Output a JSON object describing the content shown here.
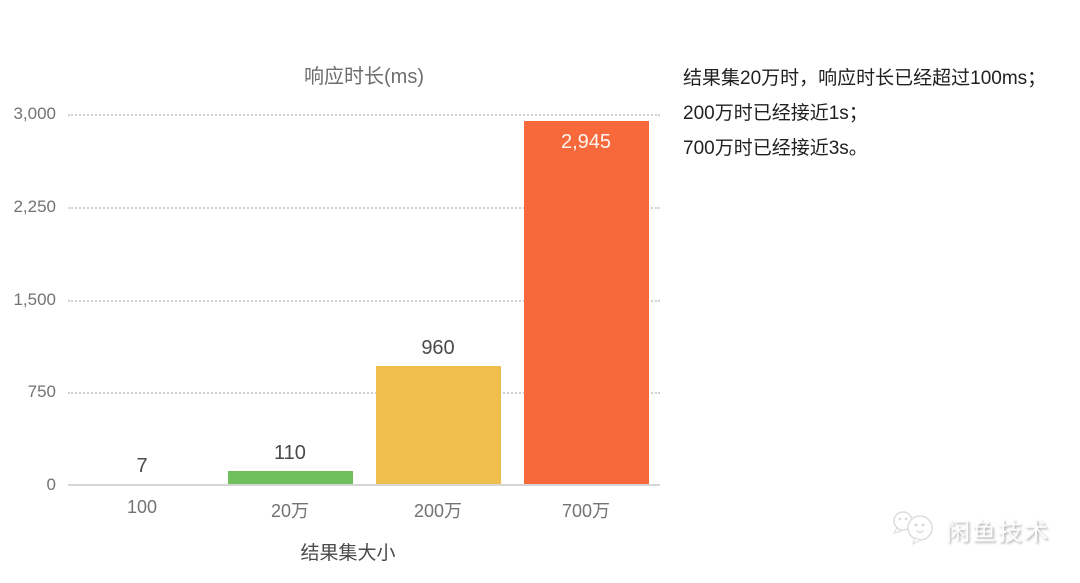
{
  "chart_data": {
    "type": "bar",
    "title": "响应时长(ms)",
    "categories": [
      "100",
      "20万",
      "200万",
      "700万"
    ],
    "values": [
      7,
      110,
      960,
      2945
    ],
    "value_labels": [
      "7",
      "110",
      "960",
      "2,945"
    ],
    "xlabel": "结果集大小",
    "ylabel": "",
    "ylim": [
      0,
      3000
    ],
    "yticks": [
      0,
      750,
      1500,
      2250,
      3000
    ],
    "ytick_labels": [
      "0",
      "750",
      "1,500",
      "2,250",
      "3,000"
    ],
    "grid": "horizontal dotted",
    "legend": "none",
    "bar_colors": [
      "#cfcfcf",
      "#6fbf5c",
      "#f0be4c",
      "#f7693b"
    ],
    "label_positions": [
      "above",
      "above",
      "above",
      "inside-top"
    ],
    "outside_label_color": "#4a4a4a",
    "inside_label_color": "#fdf6f1"
  },
  "annotation": {
    "lines": [
      "结果集20万时，响应时长已经超过100ms；",
      "200万时已经接近1s；",
      "700万时已经接近3s。"
    ]
  },
  "watermark": {
    "text": "闲鱼技术"
  }
}
